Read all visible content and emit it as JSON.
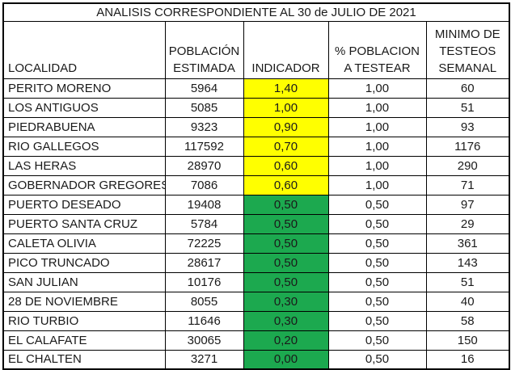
{
  "title": "ANALISIS CORRESPONDIENTE AL 30 de JULIO DE 2021",
  "columns": [
    "LOCALIDAD",
    "POBLACIÓN ESTIMADA",
    "INDICADOR",
    "% POBLACION A TESTEAR",
    "MINIMO DE TESTEOS SEMANAL"
  ],
  "colors": {
    "indicator_yellow": "#FFFF00",
    "indicator_green": "#1CA94F",
    "grid_border": "#000000",
    "text": "#1a1a1a",
    "background": "#ffffff"
  },
  "rows": [
    {
      "localidad": "PERITO MORENO",
      "poblacion_estimada": "5964",
      "indicador": "1,40",
      "indicador_color": "yellow",
      "pct_poblacion_a_testear": "1,00",
      "minimo_testeos_semanal": "60"
    },
    {
      "localidad": "LOS ANTIGUOS",
      "poblacion_estimada": "5085",
      "indicador": "1,00",
      "indicador_color": "yellow",
      "pct_poblacion_a_testear": "1,00",
      "minimo_testeos_semanal": "51"
    },
    {
      "localidad": "PIEDRABUENA",
      "poblacion_estimada": "9323",
      "indicador": "0,90",
      "indicador_color": "yellow",
      "pct_poblacion_a_testear": "1,00",
      "minimo_testeos_semanal": "93"
    },
    {
      "localidad": "RIO GALLEGOS",
      "poblacion_estimada": "117592",
      "indicador": "0,70",
      "indicador_color": "yellow",
      "pct_poblacion_a_testear": "1,00",
      "minimo_testeos_semanal": "1176"
    },
    {
      "localidad": "LAS HERAS",
      "poblacion_estimada": "28970",
      "indicador": "0,60",
      "indicador_color": "yellow",
      "pct_poblacion_a_testear": "1,00",
      "minimo_testeos_semanal": "290"
    },
    {
      "localidad": "GOBERNADOR GREGORES",
      "poblacion_estimada": "7086",
      "indicador": "0,60",
      "indicador_color": "yellow",
      "pct_poblacion_a_testear": "1,00",
      "minimo_testeos_semanal": "71"
    },
    {
      "localidad": "PUERTO DESEADO",
      "poblacion_estimada": "19408",
      "indicador": "0,50",
      "indicador_color": "green",
      "pct_poblacion_a_testear": "0,50",
      "minimo_testeos_semanal": "97"
    },
    {
      "localidad": "PUERTO SANTA CRUZ",
      "poblacion_estimada": "5784",
      "indicador": "0,50",
      "indicador_color": "green",
      "pct_poblacion_a_testear": "0,50",
      "minimo_testeos_semanal": "29"
    },
    {
      "localidad": "CALETA OLIVIA",
      "poblacion_estimada": "72225",
      "indicador": "0,50",
      "indicador_color": "green",
      "pct_poblacion_a_testear": "0,50",
      "minimo_testeos_semanal": "361"
    },
    {
      "localidad": "PICO TRUNCADO",
      "poblacion_estimada": "28617",
      "indicador": "0,50",
      "indicador_color": "green",
      "pct_poblacion_a_testear": "0,50",
      "minimo_testeos_semanal": "143"
    },
    {
      "localidad": "SAN JULIAN",
      "poblacion_estimada": "10176",
      "indicador": "0,50",
      "indicador_color": "green",
      "pct_poblacion_a_testear": "0,50",
      "minimo_testeos_semanal": "51"
    },
    {
      "localidad": "28 DE NOVIEMBRE",
      "poblacion_estimada": "8055",
      "indicador": "0,30",
      "indicador_color": "green",
      "pct_poblacion_a_testear": "0,50",
      "minimo_testeos_semanal": "40"
    },
    {
      "localidad": "RIO TURBIO",
      "poblacion_estimada": "11646",
      "indicador": "0,30",
      "indicador_color": "green",
      "pct_poblacion_a_testear": "0,50",
      "minimo_testeos_semanal": "58"
    },
    {
      "localidad": "EL CALAFATE",
      "poblacion_estimada": "30065",
      "indicador": "0,20",
      "indicador_color": "green",
      "pct_poblacion_a_testear": "0,50",
      "minimo_testeos_semanal": "150"
    },
    {
      "localidad": "EL CHALTEN",
      "poblacion_estimada": "3271",
      "indicador": "0,00",
      "indicador_color": "green",
      "pct_poblacion_a_testear": "0,50",
      "minimo_testeos_semanal": "16"
    }
  ]
}
